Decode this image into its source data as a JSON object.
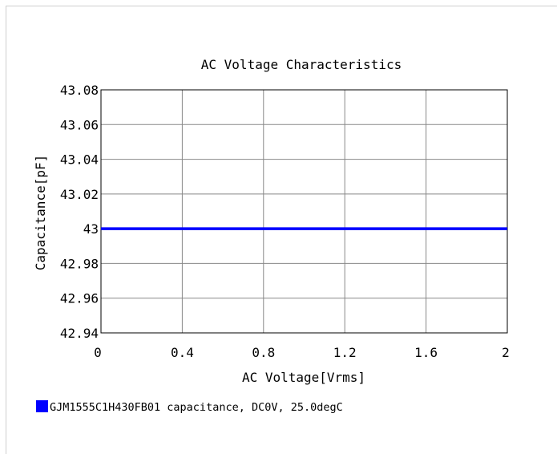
{
  "chart_data": {
    "type": "line",
    "title": "AC Voltage Characteristics",
    "xlabel": "AC Voltage[Vrms]",
    "ylabel": "Capacitance[pF]",
    "xlim": [
      0,
      2
    ],
    "ylim": [
      42.94,
      43.08
    ],
    "x_ticks": [
      0,
      0.4,
      0.8,
      1.2,
      1.6,
      2
    ],
    "x_tick_labels": [
      "0",
      "0.4",
      "0.8",
      "1.2",
      "1.6",
      "2"
    ],
    "y_ticks": [
      42.94,
      42.96,
      42.98,
      43,
      43.02,
      43.04,
      43.06,
      43.08
    ],
    "y_tick_labels": [
      "42.94",
      "42.96",
      "42.98",
      "43",
      "43.02",
      "43.04",
      "43.06",
      "43.08"
    ],
    "grid": true,
    "legend_position": "bottom-left",
    "series": [
      {
        "name": "GJM1555C1H430FB01 capacitance, DC0V, 25.0degC",
        "color": "#0000ff",
        "x": [
          0,
          0.4,
          0.8,
          1.2,
          1.6,
          2
        ],
        "y": [
          43,
          43,
          43,
          43,
          43,
          43
        ]
      }
    ]
  }
}
